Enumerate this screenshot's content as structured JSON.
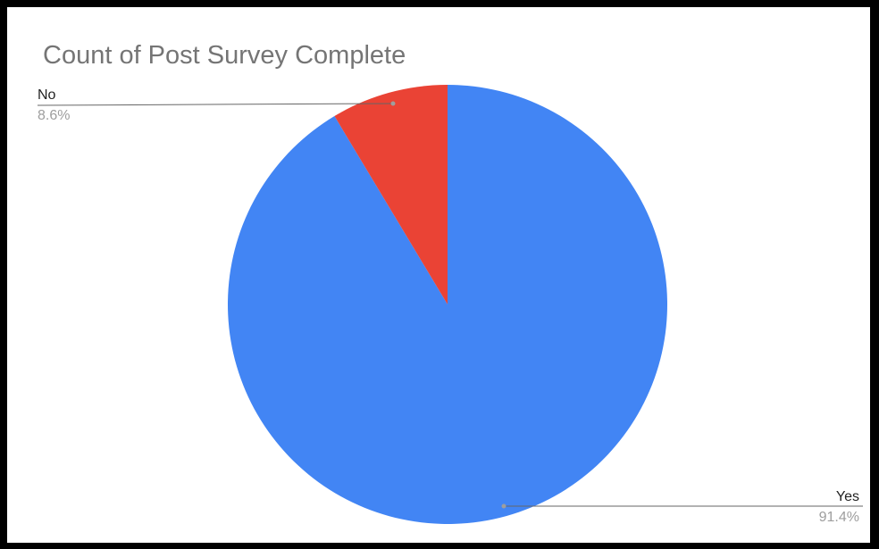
{
  "chart_data": {
    "type": "pie",
    "title": "Count of Post Survey Complete",
    "slices": [
      {
        "label": "Yes",
        "value": 91.4,
        "value_label": "91.4%",
        "color": "#4285F4"
      },
      {
        "label": "No",
        "value": 8.6,
        "value_label": "8.6%",
        "color": "#EA4335"
      }
    ],
    "start_angle": "12 o'clock",
    "direction": "clockwise",
    "legend": "outside labels with leader lines"
  }
}
